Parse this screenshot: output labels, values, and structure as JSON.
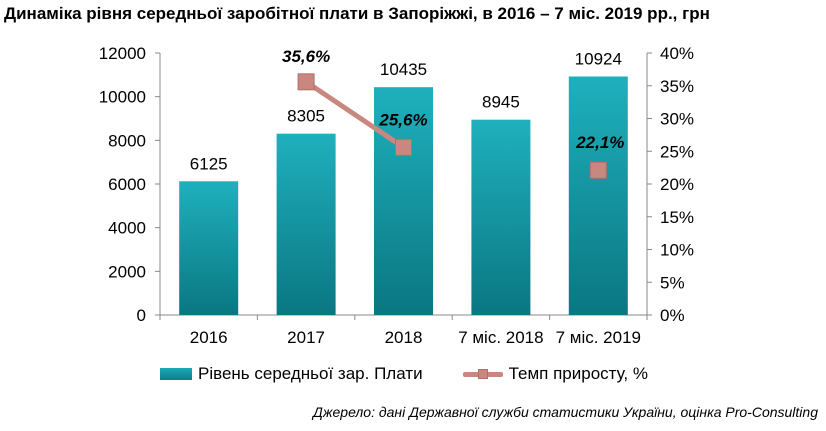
{
  "chart_data": {
    "type": "bar",
    "title": "Динаміка рівня середньої заробітної плати в Запоріжжі, в 2016 – 7 міс. 2019 рр., грн",
    "categories": [
      "2016",
      "2017",
      "2018",
      "7 міс. 2018",
      "7 міс. 2019"
    ],
    "series": [
      {
        "name": "Рівень середньої зар. Плати",
        "type": "bar",
        "axis": "left",
        "values": [
          6125,
          8305,
          10435,
          8945,
          10924
        ],
        "labels": [
          "6125",
          "8305",
          "10435",
          "8945",
          "10924"
        ],
        "color": "#1aa3b0"
      },
      {
        "name": "Темп приросту, %",
        "type": "line",
        "axis": "right",
        "values": [
          null,
          35.6,
          25.6,
          null,
          22.1
        ],
        "labels": [
          null,
          "35,6%",
          "25,6%",
          null,
          "22,1%"
        ],
        "color": "#c88880"
      }
    ],
    "y_left": {
      "ylim": [
        0,
        12000
      ],
      "ticks": [
        "0",
        "2000",
        "4000",
        "6000",
        "8000",
        "10000",
        "12000"
      ]
    },
    "y_right": {
      "ylim": [
        0,
        40
      ],
      "ticks": [
        "0%",
        "5%",
        "10%",
        "15%",
        "20%",
        "25%",
        "30%",
        "35%",
        "40%"
      ]
    },
    "grid": false,
    "legend": "bottom"
  },
  "source_note": "Джерело: дані Державної служби статистики України, оцінка Pro-Consulting"
}
